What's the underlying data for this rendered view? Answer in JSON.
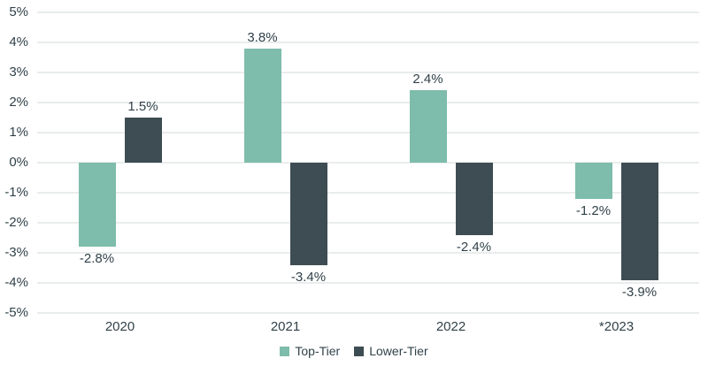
{
  "chart_data": {
    "type": "bar",
    "title": "",
    "xlabel": "",
    "ylabel": "",
    "categories": [
      "2020",
      "2021",
      "2022",
      "*2023"
    ],
    "series": [
      {
        "name": "Top-Tier",
        "color": "#7ebcab",
        "values": [
          -2.8,
          3.8,
          2.4,
          -1.2
        ],
        "labels": [
          "-2.8%",
          "3.8%",
          "2.4%",
          "-1.2%"
        ]
      },
      {
        "name": "Lower-Tier",
        "color": "#3e4d53",
        "values": [
          1.5,
          -3.4,
          -2.4,
          -3.9
        ],
        "labels": [
          "1.5%",
          "-3.4%",
          "-2.4%",
          "-3.9%"
        ]
      }
    ],
    "ylim": [
      -5,
      5
    ],
    "ytick_step": 1,
    "ytick_labels": [
      "5%",
      "4%",
      "3%",
      "2%",
      "1%",
      "0%",
      "-1%",
      "-2%",
      "-3%",
      "-4%",
      "-5%"
    ],
    "grid": true,
    "legend_position": "bottom-center"
  },
  "colors": {
    "background": "#ffffff",
    "text": "#31424a",
    "gridline": "#e9edec",
    "top_tier": "#7ebcab",
    "lower_tier": "#3e4d53"
  }
}
